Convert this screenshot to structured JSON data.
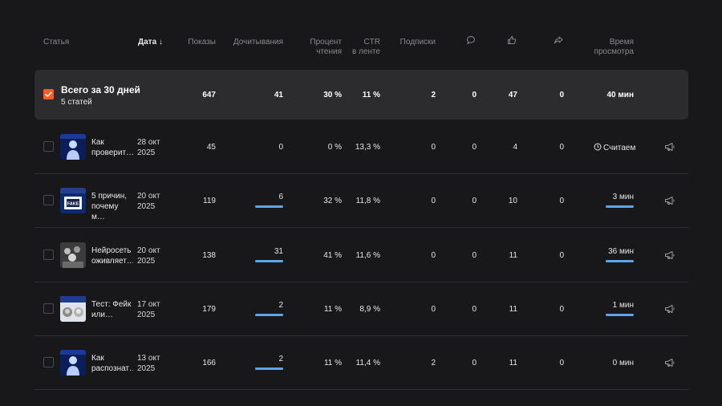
{
  "header": {
    "article": "Статья",
    "date": "Дата",
    "views": "Показы",
    "reads": "Дочитывания",
    "read_pct_l1": "Процент",
    "read_pct_l2": "чтения",
    "ctr_l1": "CTR",
    "ctr_l2": "в ленте",
    "subs": "Подписки",
    "comments_icon": "comment-icon",
    "likes_icon": "thumbs-up-icon",
    "shares_icon": "share-icon",
    "time_l1": "Время",
    "time_l2": "просмотра"
  },
  "summary": {
    "title": "Всего за 30 дней",
    "subtitle": "5 статей",
    "views": "647",
    "reads": "41",
    "read_pct": "30 %",
    "ctr": "11 %",
    "subs": "2",
    "comments": "0",
    "likes": "47",
    "shares": "0",
    "time": "40 мин"
  },
  "rows": [
    {
      "title_l1": "Как",
      "title_l2": "проверит…",
      "date_l1": "28 окт",
      "date_l2": "2025",
      "views": "45",
      "reads": "0",
      "read_pct": "0 %",
      "ctr": "13,3 %",
      "subs": "0",
      "comments": "0",
      "likes": "4",
      "shares": "0",
      "time": "Считаем",
      "reads_fill": 0,
      "time_fill": 0
    },
    {
      "title_l1": "5 причин,",
      "title_l2": "почему м…",
      "date_l1": "20 окт",
      "date_l2": "2025",
      "views": "119",
      "reads": "6",
      "read_pct": "32 %",
      "ctr": "11,8 %",
      "subs": "0",
      "comments": "0",
      "likes": "10",
      "shares": "0",
      "time": "3 мин",
      "reads_fill": 1,
      "time_fill": 1
    },
    {
      "title_l1": "Нейросеть",
      "title_l2": "оживляет…",
      "date_l1": "20 окт",
      "date_l2": "2025",
      "views": "138",
      "reads": "31",
      "read_pct": "41 %",
      "ctr": "11,6 %",
      "subs": "0",
      "comments": "0",
      "likes": "11",
      "shares": "0",
      "time": "36 мин",
      "reads_fill": 1,
      "time_fill": 1
    },
    {
      "title_l1": "Тест: Фейк",
      "title_l2": "или…",
      "date_l1": "17 окт",
      "date_l2": "2025",
      "views": "179",
      "reads": "2",
      "read_pct": "11 %",
      "ctr": "8,9 %",
      "subs": "0",
      "comments": "0",
      "likes": "11",
      "shares": "0",
      "time": "1 мин",
      "reads_fill": 1,
      "time_fill": 1
    },
    {
      "title_l1": "Как",
      "title_l2": "распознат…",
      "date_l1": "13 окт",
      "date_l2": "2025",
      "views": "166",
      "reads": "2",
      "read_pct": "11 %",
      "ctr": "11,4 %",
      "subs": "2",
      "comments": "0",
      "likes": "11",
      "shares": "0",
      "time": "0 мин",
      "reads_fill": 1,
      "time_fill": 0
    }
  ],
  "row_icons": {
    "clock": "clock-icon",
    "promote": "megaphone-icon"
  },
  "thumbs": [
    "thumb-blue-figure",
    "thumb-fake-screen",
    "thumb-crowd-bw",
    "thumb-faces-collage",
    "thumb-blue-figure"
  ],
  "thumb_label_fake": "FAKE",
  "colors": {
    "accent": "#ff5a1f",
    "bar": "#5ba4ee",
    "bg": "#18181a",
    "summary_bg": "#2c2c2f"
  }
}
